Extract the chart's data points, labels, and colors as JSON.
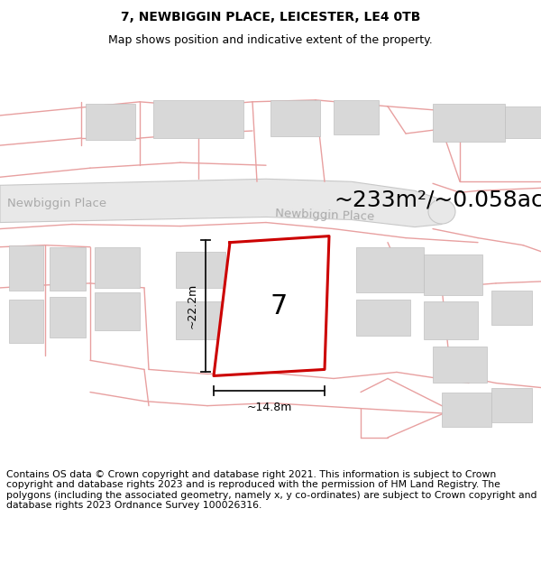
{
  "title": "7, NEWBIGGIN PLACE, LEICESTER, LE4 0TB",
  "subtitle": "Map shows position and indicative extent of the property.",
  "area_label": "~233m²/~0.058ac.",
  "number_label": "7",
  "dim_height": "~22.2m",
  "dim_width": "~14.8m",
  "street_label": "Newbiggin Place",
  "background_color": "#ffffff",
  "map_bg": "#ffffff",
  "road_fill": "#e8e8e8",
  "road_border": "#c8c8c8",
  "plot_outline_color": "#cc0000",
  "building_fill": "#d8d8d8",
  "building_edge": "#c0c0c0",
  "pink_line_color": "#e8a0a0",
  "dim_line_color": "#111111",
  "street_text_color": "#aaaaaa",
  "footer_text": "Contains OS data © Crown copyright and database right 2021. This information is subject to Crown copyright and database rights 2023 and is reproduced with the permission of HM Land Registry. The polygons (including the associated geometry, namely x, y co-ordinates) are subject to Crown copyright and database rights 2023 Ordnance Survey 100026316.",
  "footer_fontsize": 7.8,
  "title_fontsize": 10,
  "subtitle_fontsize": 9,
  "area_fontsize": 18,
  "number_fontsize": 22
}
